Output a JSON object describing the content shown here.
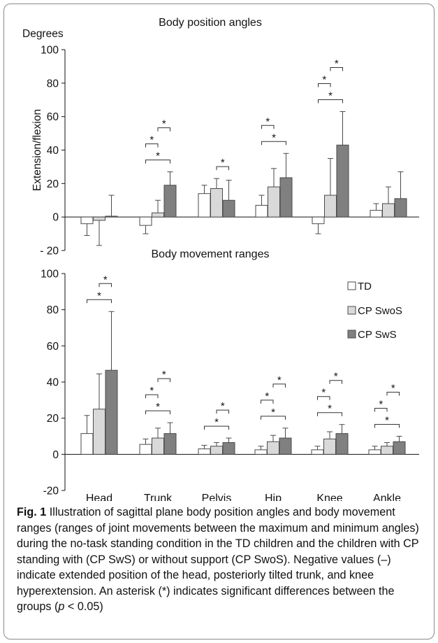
{
  "chart_data": [
    {
      "type": "bar",
      "title": "Body position angles",
      "ylabel": "Extension/flexion",
      "yunit": "Degrees",
      "ylim": [
        -20,
        100
      ],
      "yticks": [
        "- 20",
        "0",
        "20",
        "40",
        "60",
        "80",
        "100"
      ],
      "categories": [
        "Head",
        "Trunk",
        "Pelvis",
        "Hip",
        "Knee",
        "Ankle"
      ],
      "series": [
        {
          "name": "TD",
          "values": [
            -4,
            -5,
            14,
            7,
            -4,
            4
          ],
          "errors": [
            7,
            5,
            5,
            6,
            6,
            4
          ]
        },
        {
          "name": "CP SwoS",
          "values": [
            -2,
            2.5,
            17,
            18,
            13,
            8
          ],
          "errors": [
            15,
            7.5,
            6,
            11,
            22,
            10
          ]
        },
        {
          "name": "CP SwS",
          "values": [
            0.5,
            19,
            10,
            23.5,
            43,
            11
          ],
          "errors": [
            12.5,
            8,
            12,
            14.5,
            20,
            16
          ]
        }
      ],
      "significance": [
        {
          "category": "Trunk",
          "pairs": [
            "TD-CP SwS",
            "TD-CP SwoS",
            "CP SwoS-CP SwS"
          ],
          "marker": "*"
        },
        {
          "category": "Pelvis",
          "pairs": [
            "CP SwoS-CP SwS"
          ],
          "marker": "*"
        },
        {
          "category": "Hip",
          "pairs": [
            "TD-CP SwS",
            "TD-CP SwoS"
          ],
          "marker": "*"
        },
        {
          "category": "Knee",
          "pairs": [
            "TD-CP SwS",
            "TD-CP SwoS",
            "CP SwoS-CP SwS"
          ],
          "marker": "*"
        }
      ]
    },
    {
      "type": "bar",
      "title": "Body movement ranges",
      "ylim": [
        -20,
        100
      ],
      "yticks": [
        "-20",
        "0",
        "20",
        "40",
        "60",
        "80",
        "100"
      ],
      "categories": [
        "Head",
        "Trunk",
        "Pelvis",
        "Hip",
        "Knee",
        "Ankle"
      ],
      "legend_position": "top-right",
      "series": [
        {
          "name": "TD",
          "values": [
            11.5,
            5.5,
            3,
            2.5,
            2.5,
            2.5
          ],
          "errors": [
            10,
            3,
            2,
            2,
            2,
            2
          ]
        },
        {
          "name": "CP SwoS",
          "values": [
            25,
            9,
            4.5,
            7,
            8.5,
            4.5
          ],
          "errors": [
            19.5,
            5.5,
            2,
            3.5,
            4,
            2
          ]
        },
        {
          "name": "CP SwS",
          "values": [
            46.5,
            11.5,
            6.5,
            9,
            11.5,
            7
          ],
          "errors": [
            32.5,
            6,
            2.5,
            5.5,
            5,
            3
          ]
        }
      ],
      "significance": [
        {
          "category": "Head",
          "pairs": [
            "TD-CP SwS",
            "CP SwoS-CP SwS"
          ],
          "marker": "*"
        },
        {
          "category": "Trunk",
          "pairs": [
            "TD-CP SwS",
            "TD-CP SwoS",
            "CP SwoS-CP SwS"
          ],
          "marker": "*"
        },
        {
          "category": "Pelvis",
          "pairs": [
            "TD-CP SwS",
            "CP SwoS-CP SwS"
          ],
          "marker": "*"
        },
        {
          "category": "Hip",
          "pairs": [
            "TD-CP SwS",
            "TD-CP SwoS",
            "CP SwoS-CP SwS"
          ],
          "marker": "*"
        },
        {
          "category": "Knee",
          "pairs": [
            "TD-CP SwS",
            "TD-CP SwoS",
            "CP SwoS-CP SwS"
          ],
          "marker": "*"
        },
        {
          "category": "Ankle",
          "pairs": [
            "TD-CP SwS",
            "TD-CP SwoS",
            "CP SwoS-CP SwS"
          ],
          "marker": "*"
        }
      ]
    }
  ],
  "colors": {
    "TD": "#ffffff",
    "CP SwoS": "#d9d9d9",
    "CP SwS": "#808080",
    "outline": "#4a4a4a"
  },
  "caption": {
    "label": "Fig. 1",
    "text_1": " Illustration of sagittal plane body position angles and body movement ranges (ranges of joint movements between the maximum and minimum angles) during the no-task standing condition in the TD children and the children with CP standing with (CP SwS) or without support (CP SwoS). Negative values (–) indicate extended position of the head, posteriorly tilted trunk, and knee hyperextension. An asterisk (*) indicates significant differences between the groups (",
    "p_symbol": "p",
    "text_2": " < 0.05)"
  }
}
